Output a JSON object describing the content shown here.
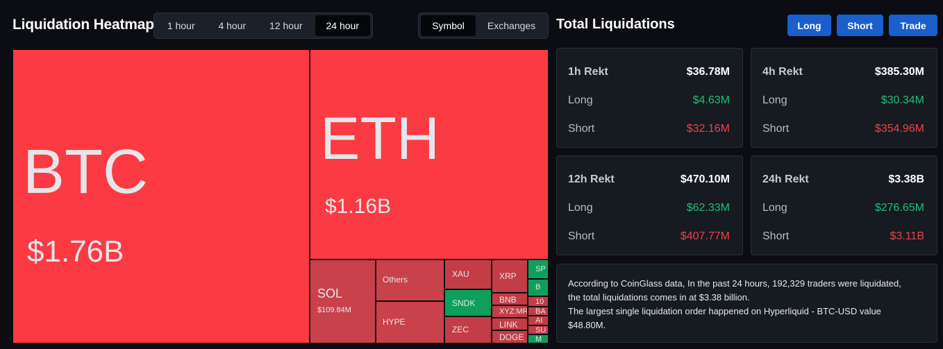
{
  "header": {
    "title": "Liquidation Heatmap",
    "time_tabs": [
      {
        "label": "1 hour"
      },
      {
        "label": "4 hour"
      },
      {
        "label": "12 hour"
      },
      {
        "label": "24 hour"
      }
    ],
    "view_tabs": [
      {
        "label": "Symbol"
      },
      {
        "label": "Exchanges"
      }
    ],
    "total_title": "Total Liquidations",
    "actions": [
      {
        "label": "Long"
      },
      {
        "label": "Short"
      },
      {
        "label": "Trade"
      }
    ]
  },
  "heatmap": {
    "btc": {
      "symbol": "BTC",
      "value": "$1.76B"
    },
    "eth": {
      "symbol": "ETH",
      "value": "$1.16B"
    },
    "sol": {
      "symbol": "SOL",
      "value": "$109.84M"
    },
    "others": {
      "symbol": "Others"
    },
    "hype": {
      "symbol": "HYPE"
    },
    "xau": {
      "symbol": "XAU"
    },
    "sndk": {
      "symbol": "SNDK"
    },
    "zec": {
      "symbol": "ZEC"
    },
    "xrp": {
      "symbol": "XRP"
    },
    "bnb": {
      "symbol": "BNB"
    },
    "xyzmr": {
      "symbol": "XYZ:MR"
    },
    "link": {
      "symbol": "LINK"
    },
    "doge": {
      "symbol": "DOGE"
    },
    "tiny": [
      {
        "symbol": "SP"
      },
      {
        "symbol": "B"
      },
      {
        "symbol": "10"
      },
      {
        "symbol": "BA"
      },
      {
        "symbol": "AI"
      },
      {
        "symbol": "SU"
      },
      {
        "symbol": "M"
      }
    ]
  },
  "stats": {
    "h1": {
      "title": "1h Rekt",
      "total": "$36.78M",
      "long_label": "Long",
      "long": "$4.63M",
      "short_label": "Short",
      "short": "$32.16M"
    },
    "h4": {
      "title": "4h Rekt",
      "total": "$385.30M",
      "long_label": "Long",
      "long": "$30.34M",
      "short_label": "Short",
      "short": "$354.96M"
    },
    "h12": {
      "title": "12h Rekt",
      "total": "$470.10M",
      "long_label": "Long",
      "long": "$62.33M",
      "short_label": "Short",
      "short": "$407.77M"
    },
    "h24": {
      "title": "24h Rekt",
      "total": "$3.38B",
      "long_label": "Long",
      "long": "$276.65M",
      "short_label": "Short",
      "short": "$3.11B"
    }
  },
  "note": {
    "line1": "According to CoinGlass data, In the past 24 hours, 192,329 traders were liquidated,",
    "line2": "the total liquidations comes in at $3.38 billion.",
    "line3": "The largest single liquidation order happened on Hyperliquid - BTC-USD value",
    "line4": "$48.80M."
  },
  "colors": {
    "accent": "#1a5fcc",
    "long": "#1fbf75",
    "short": "#f0414b",
    "heat_large": "#fc3a43",
    "heat_small": "#c9414a",
    "heat_green": "#0ea05b"
  }
}
